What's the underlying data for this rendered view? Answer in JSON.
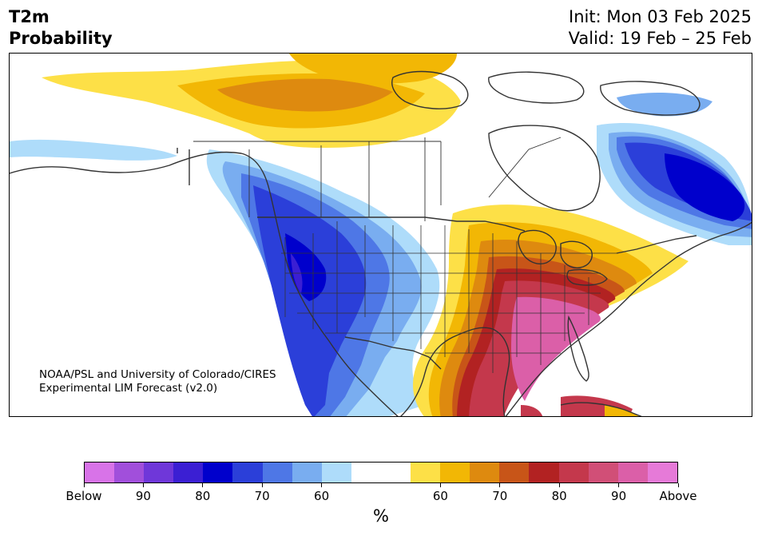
{
  "title": {
    "variable": "T2m",
    "product": "Probability",
    "init": "Init: Mon 03 Feb 2025",
    "valid": "Valid: 19 Feb – 25 Feb"
  },
  "credit": {
    "line1": "NOAA/PSL and University of Colorado/CIRES",
    "line2": "Experimental LIM Forecast (v2.0)"
  },
  "colorbar": {
    "colors": [
      "#d873e8",
      "#a14fdb",
      "#6f37d9",
      "#3b1fd3",
      "#0000cc",
      "#2b3fd9",
      "#4e77e6",
      "#79adf0",
      "#aedcfa",
      "#ffffff",
      "#ffffff",
      "#fde047",
      "#f2b705",
      "#de8a0f",
      "#c85518",
      "#b22222",
      "#c4384c",
      "#d14f77",
      "#db5fa8",
      "#e67ad8"
    ],
    "labels": [
      "Below",
      "90",
      "80",
      "70",
      "60",
      "60",
      "70",
      "80",
      "90",
      "Above"
    ],
    "unit": "%"
  },
  "map": {
    "region": "North America",
    "cold_colors": [
      "#aedcfa",
      "#79adf0",
      "#4e77e6",
      "#2b3fd9",
      "#0000cc"
    ],
    "warm_colors": [
      "#fde047",
      "#f2b705",
      "#de8a0f",
      "#c85518",
      "#b22222",
      "#c4384c",
      "#db5fa8"
    ],
    "coast_color": "#333333"
  }
}
